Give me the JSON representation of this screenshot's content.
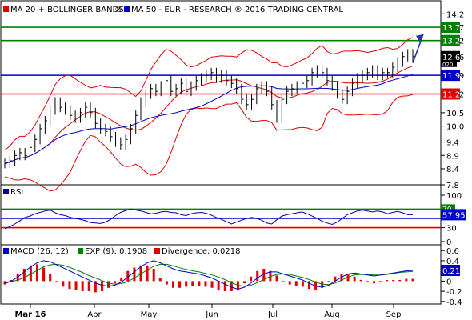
{
  "chart_data": {
    "type": "line",
    "months": [
      "Mar 16",
      "Apr",
      "May",
      "Jun",
      "Jul",
      "Aug",
      "Sep"
    ],
    "colors": {
      "price": "#000000",
      "ma20": "#e00000",
      "ma50": "#0000cc",
      "bands": "#e00000",
      "resistance": "#008000",
      "support": "#e00000",
      "pivot": "#0000cc",
      "rsi": "#0000aa",
      "macd": "#0000cc",
      "signal": "#008000",
      "divergence": "#e00000",
      "arrow": "#1a3aa0",
      "axis_bg": "#ffffff"
    },
    "price_panel": {
      "ylim": [
        7.8,
        14.6
      ],
      "ticks": [
        "14.2",
        "13.7",
        "13.2",
        "12.6",
        "11.9",
        "11.2",
        "10.5",
        "10.0",
        "9.4",
        "8.9",
        "8.4",
        "7.8"
      ],
      "legend": [
        {
          "text": "MA 20 + BOLLINGER BANDS",
          "color": "#e00000",
          "symbol": "®"
        },
        {
          "text": "MA 50 - EUR - RESEARCH ® 2016 TRADING CENTRAL",
          "color": "#0000cc",
          "symbol": ""
        }
      ],
      "levels": [
        {
          "value": 13.7,
          "label": "13.7",
          "color": "#008000"
        },
        {
          "value": 13.2,
          "label": "13.2",
          "color": "#008000"
        },
        {
          "value": 11.9,
          "label": "11.9",
          "color": "#0000cc"
        },
        {
          "value": 11.2,
          "label": "11.2",
          "color": "#e00000"
        }
      ],
      "last_price_label": "12.6",
      "mini_label": "020",
      "close": [
        8.6,
        8.7,
        8.9,
        9.0,
        8.9,
        9.2,
        9.5,
        9.9,
        10.2,
        10.6,
        10.9,
        10.7,
        10.6,
        10.4,
        10.3,
        10.5,
        10.7,
        10.5,
        10.1,
        9.9,
        9.8,
        9.6,
        9.4,
        9.3,
        9.5,
        9.9,
        10.4,
        10.9,
        11.2,
        11.4,
        11.3,
        11.5,
        11.7,
        11.3,
        11.4,
        11.6,
        11.3,
        11.5,
        11.7,
        11.8,
        11.9,
        12.0,
        11.8,
        11.9,
        11.7,
        11.6,
        11.4,
        11.0,
        10.8,
        11.0,
        11.4,
        11.5,
        11.3,
        10.8,
        10.3,
        11.0,
        11.3,
        11.4,
        11.5,
        11.6,
        11.7,
        12.0,
        12.1,
        12.0,
        11.7,
        11.5,
        11.2,
        11.0,
        11.3,
        11.6,
        11.8,
        11.9,
        12.0,
        12.1,
        11.9,
        12.0,
        12.0,
        12.2,
        12.4,
        12.6,
        12.7,
        12.6
      ]
    },
    "rsi_panel": {
      "title": "RSI",
      "ylim": [
        0,
        100
      ],
      "ticks": [
        "100",
        "30",
        "0"
      ],
      "levels": [
        {
          "value": 70,
          "label": "70",
          "color": "#008000"
        },
        {
          "value": 50,
          "label": "50",
          "color": "#0000cc"
        },
        {
          "value": 30,
          "label": "30",
          "color": "#e00000"
        }
      ],
      "last_label": "57.95",
      "values": [
        28,
        32,
        38,
        45,
        52,
        55,
        60,
        63,
        66,
        68,
        62,
        58,
        56,
        52,
        50,
        48,
        45,
        41,
        40,
        39,
        42,
        48,
        56,
        63,
        67,
        70,
        68,
        66,
        63,
        60,
        61,
        64,
        65,
        63,
        62,
        58,
        56,
        60,
        62,
        63,
        61,
        57,
        52,
        48,
        43,
        38,
        42,
        46,
        50,
        52,
        50,
        46,
        40,
        38,
        47,
        55,
        58,
        60,
        62,
        64,
        60,
        55,
        50,
        44,
        40,
        37,
        42,
        50,
        58,
        62,
        66,
        68,
        66,
        64,
        66,
        64,
        60,
        63,
        65,
        62,
        58,
        57.95
      ]
    },
    "macd_panel": {
      "legend": [
        {
          "text": "MACD (26, 12)",
          "color": "#0000cc"
        },
        {
          "text": "EXP (9): 0.1908",
          "color": "#008000"
        },
        {
          "text": "Divergence: 0.0218",
          "color": "#e00000"
        }
      ],
      "ylim": [
        -0.45,
        0.65
      ],
      "ticks": [
        "0.6",
        "0.4",
        "0.2",
        "0",
        "-0.2",
        "-0.4"
      ],
      "last_label": "0.21",
      "macd": [
        -0.05,
        0.0,
        0.08,
        0.18,
        0.28,
        0.36,
        0.4,
        0.38,
        0.32,
        0.26,
        0.2,
        0.14,
        0.08,
        0.02,
        -0.04,
        -0.08,
        -0.1,
        -0.08,
        -0.02,
        0.08,
        0.18,
        0.28,
        0.36,
        0.4,
        0.36,
        0.3,
        0.24,
        0.2,
        0.18,
        0.16,
        0.14,
        0.1,
        0.06,
        0.0,
        -0.06,
        -0.12,
        -0.16,
        -0.12,
        -0.04,
        0.06,
        0.14,
        0.18,
        0.18,
        0.14,
        0.1,
        0.06,
        0.02,
        -0.04,
        -0.1,
        -0.12,
        -0.08,
        0.0,
        0.08,
        0.14,
        0.16,
        0.14,
        0.12,
        0.1,
        0.12,
        0.14,
        0.16,
        0.18,
        0.2,
        0.21
      ],
      "signal": [
        -0.02,
        -0.01,
        0.02,
        0.07,
        0.14,
        0.21,
        0.28,
        0.32,
        0.33,
        0.31,
        0.27,
        0.22,
        0.17,
        0.11,
        0.06,
        0.01,
        -0.04,
        -0.06,
        -0.05,
        -0.01,
        0.06,
        0.14,
        0.22,
        0.29,
        0.33,
        0.33,
        0.3,
        0.26,
        0.23,
        0.2,
        0.18,
        0.15,
        0.12,
        0.08,
        0.03,
        -0.03,
        -0.08,
        -0.1,
        -0.08,
        -0.03,
        0.03,
        0.09,
        0.13,
        0.14,
        0.13,
        0.1,
        0.07,
        0.03,
        -0.02,
        -0.06,
        -0.07,
        -0.04,
        0.02,
        0.08,
        0.12,
        0.13,
        0.13,
        0.12,
        0.12,
        0.13,
        0.15,
        0.17,
        0.18,
        0.19
      ]
    }
  }
}
